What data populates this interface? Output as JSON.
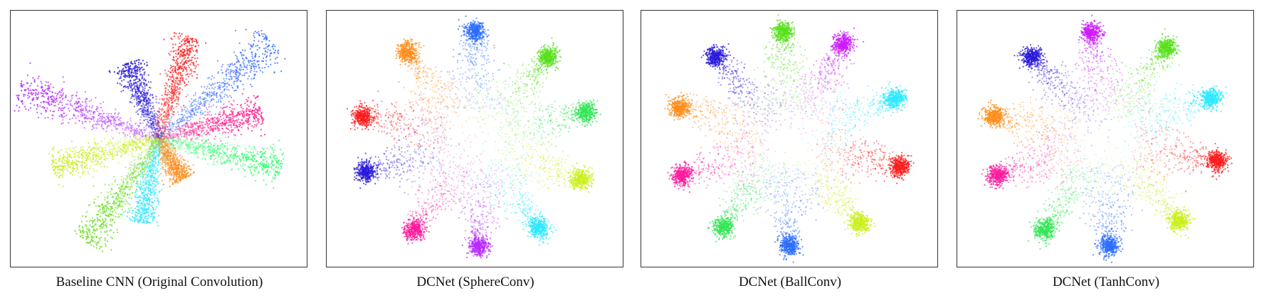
{
  "chart_data": [
    {
      "type": "scatter",
      "title": "Baseline CNN (Original Convolution)",
      "layout_style": "rays",
      "grid": false,
      "legend": "none",
      "series": [
        {
          "color": "#3a6cff",
          "angle_deg": 40,
          "length": 1.0,
          "width": 0.05
        },
        {
          "color": "#ff1a1a",
          "angle_deg": 73,
          "length": 0.72,
          "width": 0.035
        },
        {
          "color": "#2a1adb",
          "angle_deg": 112,
          "length": 0.55,
          "width": 0.035
        },
        {
          "color": "#b02aff",
          "angle_deg": 160,
          "length": 1.0,
          "width": 0.05
        },
        {
          "color": "#ff1a8c",
          "angle_deg": 15,
          "length": 0.72,
          "width": 0.045
        },
        {
          "color": "#33ff6e",
          "angle_deg": -13,
          "length": 0.85,
          "width": 0.04
        },
        {
          "color": "#ff8c1a",
          "angle_deg": -60,
          "length": 0.32,
          "width": 0.025
        },
        {
          "color": "#2ee8ff",
          "angle_deg": -102,
          "length": 0.58,
          "width": 0.035
        },
        {
          "color": "#66e01a",
          "angle_deg": -125,
          "length": 0.85,
          "width": 0.045
        },
        {
          "color": "#c8f01a",
          "angle_deg": -165,
          "length": 0.74,
          "width": 0.04
        }
      ]
    },
    {
      "type": "scatter",
      "title": "DCNet (SphereConv)",
      "layout_style": "ring",
      "grid": false,
      "legend": "none",
      "series": [
        {
          "color": "#2a6cff",
          "angle_deg": 90
        },
        {
          "color": "#55e01a",
          "angle_deg": 50
        },
        {
          "color": "#33e655",
          "angle_deg": 14
        },
        {
          "color": "#c8f01a",
          "angle_deg": -22
        },
        {
          "color": "#2ee8ff",
          "angle_deg": -56
        },
        {
          "color": "#b82aff",
          "angle_deg": -88
        },
        {
          "color": "#ff1a9c",
          "angle_deg": -122
        },
        {
          "color": "#2a1adb",
          "angle_deg": -162
        },
        {
          "color": "#ff1a1a",
          "angle_deg": 168
        },
        {
          "color": "#ff8c1a",
          "angle_deg": 126
        }
      ]
    },
    {
      "type": "scatter",
      "title": "DCNet (BallConv)",
      "layout_style": "ring",
      "grid": false,
      "legend": "none",
      "series": [
        {
          "color": "#55e01a",
          "angle_deg": 93
        },
        {
          "color": "#cc1aff",
          "angle_deg": 62
        },
        {
          "color": "#2ee8ff",
          "angle_deg": 22
        },
        {
          "color": "#ff1a1a",
          "angle_deg": -15
        },
        {
          "color": "#c8f01a",
          "angle_deg": -52
        },
        {
          "color": "#2a6cff",
          "angle_deg": -90
        },
        {
          "color": "#33e655",
          "angle_deg": -125
        },
        {
          "color": "#ff1a9c",
          "angle_deg": -160
        },
        {
          "color": "#ff8c1a",
          "angle_deg": 163
        },
        {
          "color": "#2a1adb",
          "angle_deg": 130
        }
      ]
    },
    {
      "type": "scatter",
      "title": "DCNet (TanhConv)",
      "layout_style": "ring",
      "grid": false,
      "legend": "none",
      "series": [
        {
          "color": "#cc1aff",
          "angle_deg": 97
        },
        {
          "color": "#55e01a",
          "angle_deg": 58
        },
        {
          "color": "#2ee8ff",
          "angle_deg": 22
        },
        {
          "color": "#ff1a1a",
          "angle_deg": -12
        },
        {
          "color": "#c8f01a",
          "angle_deg": -50
        },
        {
          "color": "#2a6cff",
          "angle_deg": -88
        },
        {
          "color": "#33e655",
          "angle_deg": -122
        },
        {
          "color": "#ff1a9c",
          "angle_deg": -160
        },
        {
          "color": "#ff8c1a",
          "angle_deg": 168
        },
        {
          "color": "#2a1adb",
          "angle_deg": 130
        }
      ]
    }
  ]
}
